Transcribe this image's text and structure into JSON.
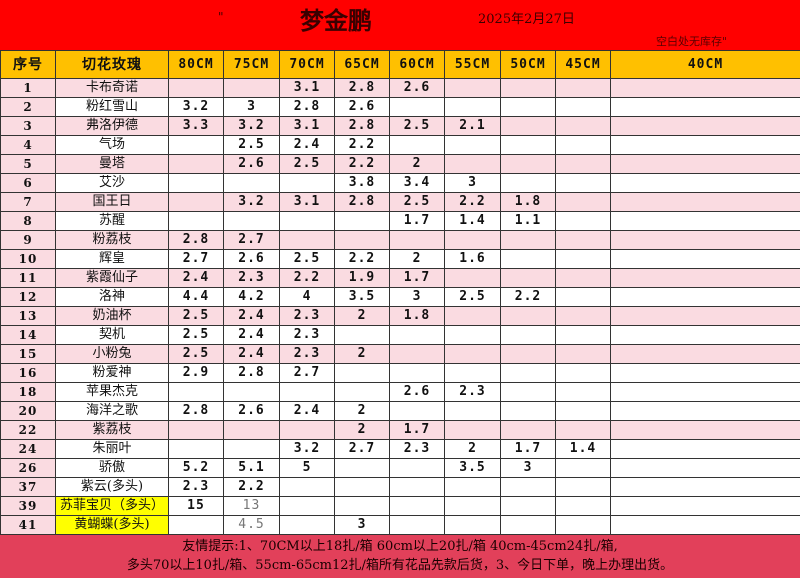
{
  "header": {
    "star": "\"",
    "title": "梦金鹏",
    "date": "2025年2月27日",
    "note": "空白处无库存\""
  },
  "columns": [
    "序号",
    "切花玫瑰",
    "80CM",
    "75CM",
    "70CM",
    "65CM",
    "60CM",
    "55CM",
    "50CM",
    "45CM",
    "40CM"
  ],
  "rows": [
    {
      "seq": "1",
      "name": "卡布奇诺",
      "pink": true,
      "v": [
        "",
        "",
        "3.1",
        "2.8",
        "2.6",
        "",
        "",
        "",
        ""
      ]
    },
    {
      "seq": "2",
      "name": "粉红雪山",
      "pink": false,
      "v": [
        "3.2",
        "3",
        "2.8",
        "2.6",
        "",
        "",
        "",
        "",
        ""
      ]
    },
    {
      "seq": "3",
      "name": "弗洛伊德",
      "pink": true,
      "v": [
        "3.3",
        "3.2",
        "3.1",
        "2.8",
        "2.5",
        "2.1",
        "",
        "",
        ""
      ]
    },
    {
      "seq": "4",
      "name": "气场",
      "pink": false,
      "v": [
        "",
        "2.5",
        "2.4",
        "2.2",
        "",
        "",
        "",
        "",
        ""
      ]
    },
    {
      "seq": "5",
      "name": "曼塔",
      "pink": true,
      "v": [
        "",
        "2.6",
        "2.5",
        "2.2",
        "2",
        "",
        "",
        "",
        ""
      ]
    },
    {
      "seq": "6",
      "name": "艾沙",
      "pink": false,
      "v": [
        "",
        "",
        "",
        "3.8",
        "3.4",
        "3",
        "",
        "",
        ""
      ]
    },
    {
      "seq": "7",
      "name": "国王日",
      "pink": true,
      "v": [
        "",
        "3.2",
        "3.1",
        "2.8",
        "2.5",
        "2.2",
        "1.8",
        "",
        ""
      ]
    },
    {
      "seq": "8",
      "name": "苏醒",
      "pink": false,
      "v": [
        "",
        "",
        "",
        "",
        "1.7",
        "1.4",
        "1.1",
        "",
        ""
      ]
    },
    {
      "seq": "9",
      "name": "粉荔枝",
      "pink": true,
      "v": [
        "2.8",
        "2.7",
        "",
        "",
        "",
        "",
        "",
        "",
        ""
      ]
    },
    {
      "seq": "10",
      "name": "辉皇",
      "pink": false,
      "v": [
        "2.7",
        "2.6",
        "2.5",
        "2.2",
        "2",
        "1.6",
        "",
        "",
        ""
      ]
    },
    {
      "seq": "11",
      "name": "紫霞仙子",
      "pink": true,
      "v": [
        "2.4",
        "2.3",
        "2.2",
        "1.9",
        "1.7",
        "",
        "",
        "",
        ""
      ]
    },
    {
      "seq": "12",
      "name": "洛神",
      "pink": false,
      "v": [
        "4.4",
        "4.2",
        "4",
        "3.5",
        "3",
        "2.5",
        "2.2",
        "",
        ""
      ]
    },
    {
      "seq": "13",
      "name": "奶油杯",
      "pink": true,
      "v": [
        "2.5",
        "2.4",
        "2.3",
        "2",
        "1.8",
        "",
        "",
        "",
        ""
      ]
    },
    {
      "seq": "14",
      "name": "契机",
      "pink": false,
      "v": [
        "2.5",
        "2.4",
        "2.3",
        "",
        "",
        "",
        "",
        "",
        ""
      ]
    },
    {
      "seq": "15",
      "name": "小粉兔",
      "pink": true,
      "v": [
        "2.5",
        "2.4",
        "2.3",
        "2",
        "",
        "",
        "",
        "",
        ""
      ]
    },
    {
      "seq": "16",
      "name": "粉爱神",
      "pink": false,
      "v": [
        "2.9",
        "2.8",
        "2.7",
        "",
        "",
        "",
        "",
        "",
        ""
      ]
    },
    {
      "seq": "18",
      "name": "苹果杰克",
      "pink": false,
      "v": [
        "",
        "",
        "",
        "",
        "2.6",
        "2.3",
        "",
        "",
        ""
      ]
    },
    {
      "seq": "20",
      "name": "海洋之歌",
      "pink": false,
      "v": [
        "2.8",
        "2.6",
        "2.4",
        "2",
        "",
        "",
        "",
        "",
        ""
      ]
    },
    {
      "seq": "22",
      "name": "紫荔枝",
      "pink": true,
      "v": [
        "",
        "",
        "",
        "2",
        "1.7",
        "",
        "",
        "",
        ""
      ]
    },
    {
      "seq": "24",
      "name": "朱丽叶",
      "pink": false,
      "v": [
        "",
        "",
        "3.2",
        "2.7",
        "2.3",
        "2",
        "1.7",
        "1.4",
        ""
      ]
    },
    {
      "seq": "26",
      "name": "骄傲",
      "pink": false,
      "v": [
        "5.2",
        "5.1",
        "5",
        "",
        "",
        "3.5",
        "3",
        "",
        ""
      ]
    },
    {
      "seq": "37",
      "name": "紫云(多头)",
      "pink": false,
      "v": [
        "2.3",
        "2.2",
        "",
        "",
        "",
        "",
        "",
        "",
        ""
      ]
    },
    {
      "seq": "39",
      "name": "苏菲宝贝（多头）",
      "pink": false,
      "yellow": true,
      "gray": [
        1
      ],
      "v": [
        "15",
        "13",
        "",
        "",
        "",
        "",
        "",
        "",
        ""
      ]
    },
    {
      "seq": "41",
      "name": "黄蝴蝶(多头)",
      "pink": false,
      "yellow": true,
      "gray": [
        1
      ],
      "v": [
        "",
        "4.5",
        "",
        "3",
        "",
        "",
        "",
        "",
        ""
      ]
    }
  ],
  "footer": {
    "line1": "友情提示:1、70CM以上18扎/箱 60cm以上20扎/箱 40cm-45cm24扎/箱,",
    "line2": "多头70以上10扎/箱、55cm-65cm12扎/箱所有花品先款后货，3、今日下单，晚上办理出货。"
  },
  "colors": {
    "banner": "#ff0000",
    "header": "#ffc000",
    "pinkRow": "#fadbe1",
    "footer": "#e2405a",
    "highlight": "#ffff00"
  }
}
